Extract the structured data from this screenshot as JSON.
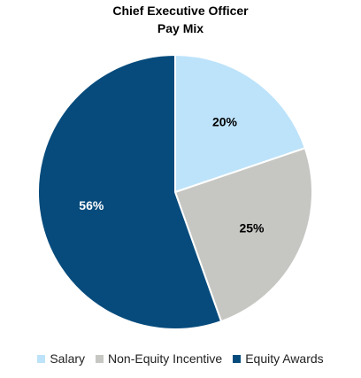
{
  "chart_data": {
    "type": "pie",
    "title_line1": "Chief Executive Officer",
    "title_line2": "Pay Mix",
    "start_angle_deg": 0,
    "direction": "clockwise",
    "slices": [
      {
        "name": "Salary",
        "value": 20,
        "label": "20%",
        "color": "#bde3fa",
        "label_color": "#000000"
      },
      {
        "name": "Non-Equity Incentive",
        "value": 25,
        "label": "25%",
        "color": "#c6c6c3",
        "label_color": "#000000"
      },
      {
        "name": "Equity Awards",
        "value": 56,
        "label": "56%",
        "color": "#064b7c",
        "label_color": "#ffffff"
      }
    ],
    "legend_position": "bottom"
  }
}
